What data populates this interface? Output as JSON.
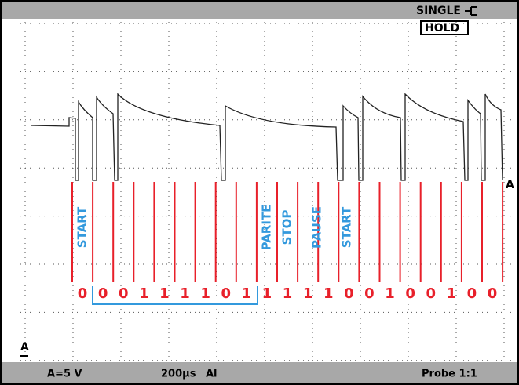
{
  "header": {
    "mode": "SINGLE",
    "hold": "HOLD"
  },
  "labels": [
    "START",
    "PARITE",
    "STOP",
    "PAUSE",
    "START"
  ],
  "bits": [
    "0",
    "0",
    "0",
    "1",
    "1",
    "1",
    "1",
    "0",
    "1",
    "1",
    "1",
    "1",
    "1",
    "0",
    "0",
    "1",
    "0",
    "0",
    "1",
    "0",
    "0"
  ],
  "markers": {
    "trigger": "A",
    "ground": "A"
  },
  "footer": {
    "scale": "A=5 V",
    "time": "200µs",
    "trigger": "Al",
    "probe": "Probe 1:1"
  }
}
